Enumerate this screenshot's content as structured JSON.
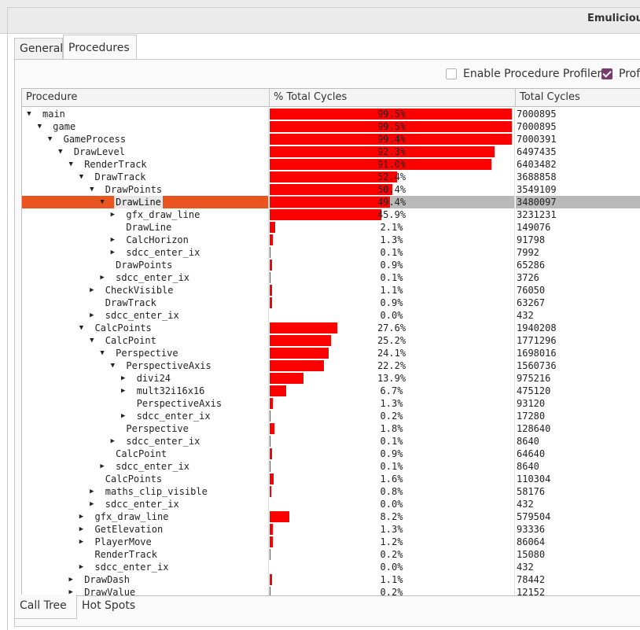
{
  "window": {
    "title": "Emulicious"
  },
  "tabs": [
    {
      "label": "General"
    },
    {
      "label": "Procedures"
    }
  ],
  "options": {
    "enable_profiler": "Enable Procedure Profiler",
    "profiler_partial": "Prof"
  },
  "columns": {
    "procedure": "Procedure",
    "pct": "% Total Cycles",
    "total": "Total Cycles"
  },
  "rows": [
    {
      "d": 0,
      "a": "down",
      "name": "main",
      "pct": "99.5%",
      "v": 99.5,
      "total": "7000895"
    },
    {
      "d": 1,
      "a": "down",
      "name": "game",
      "pct": "99.5%",
      "v": 99.5,
      "total": "7000895"
    },
    {
      "d": 2,
      "a": "down",
      "name": "GameProcess",
      "pct": "99.4%",
      "v": 99.4,
      "total": "7000391"
    },
    {
      "d": 3,
      "a": "down",
      "name": "DrawLevel",
      "pct": "92.3%",
      "v": 92.3,
      "total": "6497435"
    },
    {
      "d": 4,
      "a": "down",
      "name": "RenderTrack",
      "pct": "91.0%",
      "v": 91.0,
      "total": "6403482"
    },
    {
      "d": 5,
      "a": "down",
      "name": "DrawTrack",
      "pct": "52.4%",
      "v": 52.4,
      "total": "3688858"
    },
    {
      "d": 6,
      "a": "down",
      "name": "DrawPoints",
      "pct": "50.4%",
      "v": 50.4,
      "total": "3549109"
    },
    {
      "d": 7,
      "a": "down",
      "name": "DrawLine",
      "pct": "49.4%",
      "v": 49.4,
      "total": "3480097",
      "sel": true
    },
    {
      "d": 8,
      "a": "right",
      "name": "gfx_draw_line",
      "pct": "45.9%",
      "v": 45.9,
      "total": "3231231"
    },
    {
      "d": 8,
      "a": "",
      "name": "DrawLine",
      "pct": "2.1%",
      "v": 2.1,
      "total": "149076"
    },
    {
      "d": 8,
      "a": "right",
      "name": "CalcHorizon",
      "pct": "1.3%",
      "v": 1.3,
      "total": "91798"
    },
    {
      "d": 8,
      "a": "right",
      "name": "sdcc_enter_ix",
      "pct": "0.1%",
      "v": 0.1,
      "total": "7992"
    },
    {
      "d": 7,
      "a": "",
      "name": "DrawPoints",
      "pct": "0.9%",
      "v": 0.9,
      "total": "65286"
    },
    {
      "d": 7,
      "a": "right",
      "name": "sdcc_enter_ix",
      "pct": "0.1%",
      "v": 0.1,
      "total": "3726"
    },
    {
      "d": 6,
      "a": "right",
      "name": "CheckVisible",
      "pct": "1.1%",
      "v": 1.1,
      "total": "76050"
    },
    {
      "d": 6,
      "a": "",
      "name": "DrawTrack",
      "pct": "0.9%",
      "v": 0.9,
      "total": "63267"
    },
    {
      "d": 6,
      "a": "right",
      "name": "sdcc_enter_ix",
      "pct": "0.0%",
      "v": 0.0,
      "total": "432"
    },
    {
      "d": 5,
      "a": "down",
      "name": "CalcPoints",
      "pct": "27.6%",
      "v": 27.6,
      "total": "1940208"
    },
    {
      "d": 6,
      "a": "down",
      "name": "CalcPoint",
      "pct": "25.2%",
      "v": 25.2,
      "total": "1771296"
    },
    {
      "d": 7,
      "a": "down",
      "name": "Perspective",
      "pct": "24.1%",
      "v": 24.1,
      "total": "1698016"
    },
    {
      "d": 8,
      "a": "down",
      "name": "PerspectiveAxis",
      "pct": "22.2%",
      "v": 22.2,
      "total": "1560736"
    },
    {
      "d": 9,
      "a": "right",
      "name": "divi24",
      "pct": "13.9%",
      "v": 13.9,
      "total": "975216"
    },
    {
      "d": 9,
      "a": "right",
      "name": "mult32i16x16",
      "pct": "6.7%",
      "v": 6.7,
      "total": "475120"
    },
    {
      "d": 9,
      "a": "",
      "name": "PerspectiveAxis",
      "pct": "1.3%",
      "v": 1.3,
      "total": "93120"
    },
    {
      "d": 9,
      "a": "right",
      "name": "sdcc_enter_ix",
      "pct": "0.2%",
      "v": 0.2,
      "total": "17280"
    },
    {
      "d": 8,
      "a": "",
      "name": "Perspective",
      "pct": "1.8%",
      "v": 1.8,
      "total": "128640"
    },
    {
      "d": 8,
      "a": "right",
      "name": "sdcc_enter_ix",
      "pct": "0.1%",
      "v": 0.1,
      "total": "8640"
    },
    {
      "d": 7,
      "a": "",
      "name": "CalcPoint",
      "pct": "0.9%",
      "v": 0.9,
      "total": "64640"
    },
    {
      "d": 7,
      "a": "right",
      "name": "sdcc_enter_ix",
      "pct": "0.1%",
      "v": 0.1,
      "total": "8640"
    },
    {
      "d": 6,
      "a": "",
      "name": "CalcPoints",
      "pct": "1.6%",
      "v": 1.6,
      "total": "110304"
    },
    {
      "d": 6,
      "a": "right",
      "name": "maths_clip_visible",
      "pct": "0.8%",
      "v": 0.8,
      "total": "58176"
    },
    {
      "d": 6,
      "a": "right",
      "name": "sdcc_enter_ix",
      "pct": "0.0%",
      "v": 0.0,
      "total": "432"
    },
    {
      "d": 5,
      "a": "right",
      "name": "gfx_draw_line",
      "pct": "8.2%",
      "v": 8.2,
      "total": "579504"
    },
    {
      "d": 5,
      "a": "right",
      "name": "GetElevation",
      "pct": "1.3%",
      "v": 1.3,
      "total": "93336"
    },
    {
      "d": 5,
      "a": "right",
      "name": "PlayerMove",
      "pct": "1.2%",
      "v": 1.2,
      "total": "86064"
    },
    {
      "d": 5,
      "a": "",
      "name": "RenderTrack",
      "pct": "0.2%",
      "v": 0.2,
      "total": "15080"
    },
    {
      "d": 5,
      "a": "right",
      "name": "sdcc_enter_ix",
      "pct": "0.0%",
      "v": 0.0,
      "total": "432"
    },
    {
      "d": 4,
      "a": "right",
      "name": "DrawDash",
      "pct": "1.1%",
      "v": 1.1,
      "total": "78442"
    },
    {
      "d": 4,
      "a": "right",
      "name": "DrawValue",
      "pct": "0.2%",
      "v": 0.2,
      "total": "12152"
    }
  ],
  "bottom_tabs": [
    {
      "label": "Call Tree"
    },
    {
      "label": "Hot Spots"
    }
  ],
  "colors": {
    "bar": "#ff0000",
    "selection": "#e95420",
    "checkbox": "#7b3a6e"
  }
}
